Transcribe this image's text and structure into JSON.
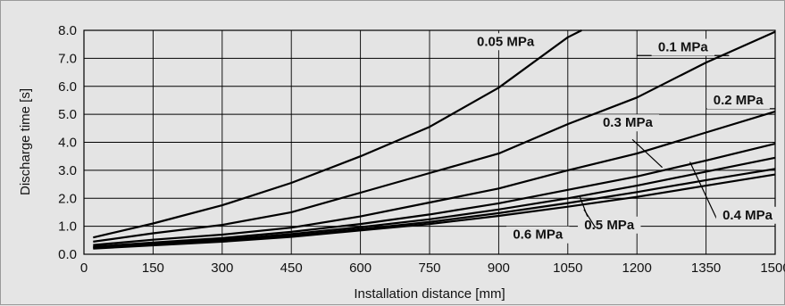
{
  "chart_data": {
    "type": "line",
    "title": "",
    "xlabel": "Installation distance [mm]",
    "ylabel": "Discharge time [s]",
    "xlim": [
      0,
      1500
    ],
    "ylim": [
      0,
      8
    ],
    "grid": true,
    "xticks": [
      0,
      150,
      300,
      450,
      600,
      750,
      900,
      1050,
      1200,
      1350,
      1500
    ],
    "yticks": [
      "0.0",
      "1.0",
      "2.0",
      "3.0",
      "4.0",
      "5.0",
      "6.0",
      "7.0",
      "8.0"
    ],
    "series": [
      {
        "name": "0.05 MPa",
        "x": [
          20,
          150,
          300,
          450,
          600,
          750,
          900,
          1050,
          1080
        ],
        "y": [
          0.6,
          1.1,
          1.75,
          2.55,
          3.5,
          4.55,
          5.95,
          7.75,
          8.0
        ]
      },
      {
        "name": "0.1 MPa",
        "x": [
          20,
          150,
          300,
          450,
          600,
          750,
          900,
          1050,
          1200,
          1350,
          1500
        ],
        "y": [
          0.45,
          0.75,
          1.05,
          1.5,
          2.2,
          2.9,
          3.6,
          4.65,
          5.6,
          6.85,
          7.95
        ]
      },
      {
        "name": "0.2 MPa",
        "x": [
          20,
          150,
          300,
          450,
          600,
          750,
          900,
          1050,
          1200,
          1350,
          1500
        ],
        "y": [
          0.33,
          0.52,
          0.7,
          0.95,
          1.35,
          1.85,
          2.35,
          3.0,
          3.6,
          4.35,
          5.1
        ]
      },
      {
        "name": "0.3 MPa",
        "x": [
          20,
          150,
          300,
          450,
          600,
          750,
          900,
          1050,
          1200,
          1350,
          1500
        ],
        "y": [
          0.27,
          0.42,
          0.58,
          0.8,
          1.08,
          1.42,
          1.82,
          2.3,
          2.78,
          3.35,
          3.95
        ]
      },
      {
        "name": "0.4 MPa",
        "x": [
          20,
          150,
          300,
          450,
          600,
          750,
          900,
          1050,
          1200,
          1350,
          1500
        ],
        "y": [
          0.25,
          0.38,
          0.52,
          0.72,
          0.97,
          1.25,
          1.6,
          2.0,
          2.45,
          2.95,
          3.45
        ]
      },
      {
        "name": "0.5 MPa",
        "x": [
          20,
          150,
          300,
          450,
          600,
          750,
          900,
          1050,
          1200,
          1350,
          1500
        ],
        "y": [
          0.23,
          0.35,
          0.48,
          0.66,
          0.9,
          1.15,
          1.47,
          1.83,
          2.22,
          2.65,
          3.05
        ]
      },
      {
        "name": "0.6 MPa",
        "x": [
          20,
          150,
          300,
          450,
          600,
          750,
          900,
          1050,
          1200,
          1350,
          1500
        ],
        "y": [
          0.2,
          0.32,
          0.45,
          0.62,
          0.85,
          1.08,
          1.37,
          1.7,
          2.05,
          2.45,
          2.85
        ]
      }
    ],
    "labels": [
      {
        "text": "0.05 MPa",
        "lx": 915,
        "ly": 7.45,
        "line": null
      },
      {
        "text": "0.1 MPa",
        "lx": 1300,
        "ly": 7.25,
        "line": [
          1200,
          7.1,
          1400,
          7.1
        ]
      },
      {
        "text": "0.2 MPa",
        "lx": 1420,
        "ly": 5.35,
        "line": [
          1350,
          5.2,
          1500,
          5.2
        ]
      },
      {
        "text": "0.3 MPa",
        "lx": 1180,
        "ly": 4.55,
        "line": [
          1190,
          4.1,
          1255,
          3.1
        ]
      },
      {
        "text": "0.4 MPa",
        "lx": 1440,
        "ly": 1.25,
        "line": [
          1315,
          3.3,
          1375,
          1.2
        ]
      },
      {
        "text": "0.5 MPa",
        "lx": 1140,
        "ly": 0.9,
        "line": [
          1075,
          2.1,
          1095,
          1.25
        ]
      },
      {
        "text": "0.6 MPa",
        "lx": 985,
        "ly": 0.55,
        "line": [
          1085,
          1.6,
          1110,
          0.95
        ]
      }
    ]
  }
}
